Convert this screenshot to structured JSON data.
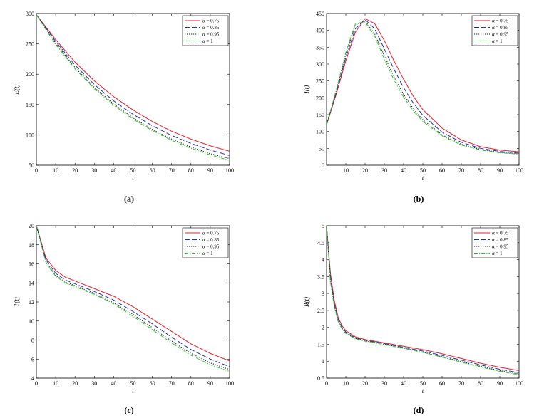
{
  "legend_labels": [
    "α = 0.75",
    "α = 0.85",
    "α = 0.95",
    "α = 1"
  ],
  "series_colors": [
    "#e8202a",
    "#1f2fb5",
    "#222222",
    "#22c522"
  ],
  "chart_data": [
    {
      "type": "line",
      "caption": "(a)",
      "xlabel": "t",
      "ylabel": "E(t)",
      "xlim": [
        0,
        100
      ],
      "ylim": [
        50,
        300
      ],
      "xticks": [
        0,
        10,
        20,
        30,
        40,
        50,
        60,
        70,
        80,
        90,
        100
      ],
      "yticks": [
        50,
        100,
        150,
        200,
        250,
        300
      ],
      "x": [
        0,
        10,
        20,
        30,
        40,
        50,
        60,
        70,
        80,
        90,
        100
      ],
      "series": [
        {
          "name": "α = 0.75",
          "values": [
            298,
            257,
            220,
            189,
            163,
            141,
            122,
            106,
            93,
            82,
            73
          ]
        },
        {
          "name": "α = 0.85",
          "values": [
            298,
            254,
            215,
            183,
            156,
            134,
            115,
            99,
            86,
            75,
            66
          ]
        },
        {
          "name": "α = 0.95",
          "values": [
            298,
            251,
            211,
            178,
            151,
            128,
            109,
            93,
            80,
            69,
            61
          ]
        },
        {
          "name": "α = 1",
          "values": [
            298,
            249,
            209,
            176,
            149,
            126,
            107,
            91,
            78,
            67,
            58
          ]
        }
      ]
    },
    {
      "type": "line",
      "caption": "(b)",
      "xlabel": "t",
      "ylabel": "I(t)",
      "xlim": [
        0,
        100
      ],
      "ylim": [
        0,
        450
      ],
      "xticks": [
        10,
        20,
        30,
        40,
        50,
        60,
        70,
        80,
        90,
        100
      ],
      "yticks": [
        0,
        50,
        100,
        150,
        200,
        250,
        300,
        350,
        400,
        450
      ],
      "x": [
        0,
        5,
        10,
        15,
        20,
        25,
        30,
        35,
        40,
        45,
        50,
        60,
        70,
        80,
        90,
        100
      ],
      "series": [
        {
          "name": "α = 0.75",
          "values": [
            120,
            210,
            310,
            395,
            435,
            420,
            370,
            310,
            255,
            205,
            165,
            110,
            75,
            55,
            45,
            40
          ]
        },
        {
          "name": "α = 0.85",
          "values": [
            120,
            215,
            320,
            405,
            432,
            405,
            345,
            285,
            230,
            185,
            148,
            98,
            68,
            50,
            41,
            36
          ]
        },
        {
          "name": "α = 0.95",
          "values": [
            120,
            220,
            330,
            415,
            428,
            390,
            325,
            262,
            210,
            168,
            135,
            90,
            62,
            47,
            38,
            34
          ]
        },
        {
          "name": "α = 1",
          "values": [
            120,
            222,
            335,
            420,
            425,
            383,
            315,
            253,
            202,
            162,
            130,
            87,
            60,
            45,
            37,
            33
          ]
        }
      ]
    },
    {
      "type": "line",
      "caption": "(c)",
      "xlabel": "t",
      "ylabel": "T(t)",
      "xlim": [
        0,
        100
      ],
      "ylim": [
        4,
        20
      ],
      "xticks": [
        0,
        10,
        20,
        30,
        40,
        50,
        60,
        70,
        80,
        90,
        100
      ],
      "yticks": [
        4,
        6,
        8,
        10,
        12,
        14,
        16,
        18,
        20
      ],
      "x": [
        0,
        5,
        10,
        15,
        20,
        30,
        40,
        50,
        60,
        70,
        80,
        90,
        100
      ],
      "series": [
        {
          "name": "α = 0.75",
          "values": [
            20,
            16.6,
            15.3,
            14.6,
            14.2,
            13.4,
            12.6,
            11.5,
            10.2,
            8.9,
            7.6,
            6.6,
            5.8
          ]
        },
        {
          "name": "α = 0.85",
          "values": [
            20,
            16.4,
            15.0,
            14.3,
            13.9,
            13.1,
            12.2,
            11.0,
            9.7,
            8.3,
            7.0,
            6.0,
            5.2
          ]
        },
        {
          "name": "α = 0.95",
          "values": [
            20,
            16.2,
            14.8,
            14.1,
            13.7,
            12.9,
            11.9,
            10.7,
            9.3,
            7.9,
            6.6,
            5.6,
            4.9
          ]
        },
        {
          "name": "α = 1",
          "values": [
            20,
            16.1,
            14.7,
            14.0,
            13.6,
            12.8,
            11.8,
            10.5,
            9.1,
            7.7,
            6.4,
            5.4,
            4.7
          ]
        }
      ]
    },
    {
      "type": "line",
      "caption": "(d)",
      "xlabel": "t",
      "ylabel": "R(t)",
      "xlim": [
        0,
        100
      ],
      "ylim": [
        0.5,
        5
      ],
      "xticks": [
        0,
        10,
        20,
        30,
        40,
        50,
        60,
        70,
        80,
        90,
        100
      ],
      "yticks": [
        0.5,
        1,
        1.5,
        2,
        2.5,
        3,
        3.5,
        4,
        4.5,
        5
      ],
      "x": [
        0,
        2,
        4,
        6,
        8,
        10,
        15,
        20,
        30,
        40,
        50,
        60,
        70,
        80,
        90,
        100
      ],
      "series": [
        {
          "name": "α = 0.75",
          "values": [
            5,
            3.6,
            2.8,
            2.3,
            2.05,
            1.9,
            1.72,
            1.64,
            1.54,
            1.44,
            1.34,
            1.22,
            1.08,
            0.94,
            0.82,
            0.72
          ]
        },
        {
          "name": "α = 0.85",
          "values": [
            5,
            3.5,
            2.7,
            2.25,
            2.0,
            1.86,
            1.69,
            1.62,
            1.52,
            1.41,
            1.3,
            1.17,
            1.03,
            0.89,
            0.76,
            0.66
          ]
        },
        {
          "name": "α = 0.95",
          "values": [
            5,
            3.4,
            2.65,
            2.2,
            1.97,
            1.83,
            1.67,
            1.6,
            1.5,
            1.39,
            1.27,
            1.13,
            0.99,
            0.85,
            0.72,
            0.62
          ]
        },
        {
          "name": "α = 1",
          "values": [
            5,
            3.35,
            2.6,
            2.18,
            1.95,
            1.82,
            1.66,
            1.59,
            1.49,
            1.38,
            1.26,
            1.12,
            0.97,
            0.83,
            0.7,
            0.6
          ]
        }
      ]
    }
  ]
}
